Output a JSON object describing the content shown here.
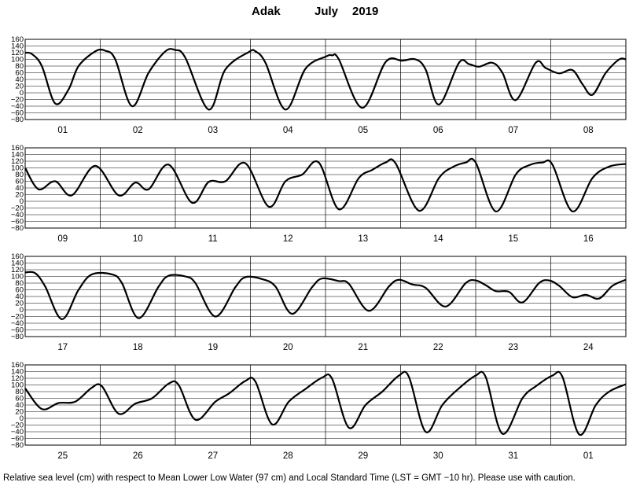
{
  "title": {
    "station": "Adak",
    "month": "July",
    "year": "2019"
  },
  "footnote": "Relative sea level (cm) with respect to Mean Lower Low Water (97 cm) and Local Standard Time (LST = GMT −10 hr). Please use with caution.",
  "chart_data": [
    {
      "type": "line",
      "ylim": [
        -80,
        160
      ],
      "yticks": [
        "160",
        "140",
        "120",
        "100",
        "80",
        "60",
        "40",
        "20",
        "0",
        "−20",
        "−40",
        "−60",
        "−80"
      ],
      "grid": true,
      "categories": [
        "01",
        "02",
        "03",
        "04",
        "05",
        "06",
        "07",
        "08"
      ],
      "series": [
        {
          "points": [
            [
              0,
              120
            ],
            [
              2,
              116
            ],
            [
              5,
              80
            ],
            [
              9,
              -32
            ],
            [
              13,
              10
            ],
            [
              16,
              80
            ],
            [
              21,
              124
            ],
            [
              24,
              126
            ],
            [
              27,
              100
            ],
            [
              32,
              -40
            ],
            [
              37,
              60
            ],
            [
              42,
              124
            ],
            [
              45,
              128
            ],
            [
              48,
              105
            ],
            [
              55,
              -50
            ],
            [
              60,
              70
            ],
            [
              67,
              122
            ],
            [
              69,
              124
            ],
            [
              72,
              90
            ],
            [
              78,
              -50
            ],
            [
              84,
              72
            ],
            [
              90,
              108
            ],
            [
              92,
              112
            ],
            [
              94,
              100
            ],
            [
              101,
              -45
            ],
            [
              108,
              92
            ],
            [
              113,
              96
            ],
            [
              117,
              100
            ],
            [
              120,
              70
            ],
            [
              124,
              -35
            ],
            [
              130,
              90
            ],
            [
              133,
              86
            ],
            [
              136,
              78
            ],
            [
              140,
              90
            ],
            [
              143,
              60
            ],
            [
              147,
              -22
            ],
            [
              153,
              90
            ],
            [
              156,
              74
            ],
            [
              160,
              58
            ],
            [
              164,
              68
            ],
            [
              167,
              26
            ],
            [
              170,
              -6
            ],
            [
              174,
              60
            ],
            [
              178,
              100
            ],
            [
              180,
              100
            ]
          ]
        }
      ]
    },
    {
      "type": "line",
      "ylim": [
        -80,
        160
      ],
      "yticks": [
        "160",
        "140",
        "120",
        "100",
        "80",
        "60",
        "40",
        "20",
        "0",
        "−20",
        "−40",
        "−60",
        "−80"
      ],
      "grid": true,
      "categories": [
        "09",
        "10",
        "11",
        "12",
        "13",
        "14",
        "15",
        "16"
      ],
      "series": [
        {
          "points": [
            [
              0,
              100
            ],
            [
              4,
              36
            ],
            [
              9,
              60
            ],
            [
              14,
              18
            ],
            [
              21,
              106
            ],
            [
              28,
              18
            ],
            [
              33,
              56
            ],
            [
              37,
              36
            ],
            [
              43,
              110
            ],
            [
              50,
              -4
            ],
            [
              55,
              58
            ],
            [
              60,
              60
            ],
            [
              66,
              114
            ],
            [
              73,
              -16
            ],
            [
              78,
              60
            ],
            [
              83,
              80
            ],
            [
              88,
              116
            ],
            [
              94,
              -24
            ],
            [
              100,
              70
            ],
            [
              104,
              94
            ],
            [
              108,
              116
            ],
            [
              111,
              114
            ],
            [
              118,
              -28
            ],
            [
              124,
              70
            ],
            [
              128,
              102
            ],
            [
              132,
              116
            ],
            [
              135,
              116
            ],
            [
              141,
              -30
            ],
            [
              147,
              80
            ],
            [
              151,
              108
            ],
            [
              155,
              116
            ],
            [
              158,
              110
            ],
            [
              164,
              -30
            ],
            [
              170,
              70
            ],
            [
              175,
              104
            ],
            [
              180,
              112
            ]
          ]
        }
      ]
    },
    {
      "type": "line",
      "ylim": [
        -80,
        160
      ],
      "yticks": [
        "160",
        "140",
        "120",
        "100",
        "80",
        "60",
        "40",
        "20",
        "0",
        "−20",
        "−40",
        "−60",
        "−80"
      ],
      "grid": true,
      "categories": [
        "17",
        "18",
        "19",
        "20",
        "21",
        "22",
        "23",
        "24"
      ],
      "series": [
        {
          "points": [
            [
              0,
              112
            ],
            [
              3,
              110
            ],
            [
              6,
              70
            ],
            [
              11,
              -28
            ],
            [
              16,
              60
            ],
            [
              20,
              106
            ],
            [
              26,
              106
            ],
            [
              29,
              80
            ],
            [
              34,
              -25
            ],
            [
              40,
              70
            ],
            [
              43,
              102
            ],
            [
              48,
              100
            ],
            [
              51,
              80
            ],
            [
              57,
              -20
            ],
            [
              63,
              68
            ],
            [
              66,
              98
            ],
            [
              71,
              92
            ],
            [
              75,
              70
            ],
            [
              80,
              -12
            ],
            [
              86,
              68
            ],
            [
              89,
              94
            ],
            [
              94,
              86
            ],
            [
              97,
              78
            ],
            [
              103,
              -3
            ],
            [
              109,
              70
            ],
            [
              112,
              90
            ],
            [
              116,
              76
            ],
            [
              120,
              66
            ],
            [
              126,
              10
            ],
            [
              132,
              80
            ],
            [
              135,
              88
            ],
            [
              138,
              74
            ],
            [
              141,
              56
            ],
            [
              145,
              54
            ],
            [
              149,
              22
            ],
            [
              154,
              80
            ],
            [
              157,
              88
            ],
            [
              160,
              72
            ],
            [
              164,
              38
            ],
            [
              168,
              45
            ],
            [
              172,
              34
            ],
            [
              176,
              72
            ],
            [
              180,
              90
            ]
          ]
        }
      ]
    },
    {
      "type": "line",
      "ylim": [
        -80,
        160
      ],
      "yticks": [
        "160",
        "140",
        "120",
        "100",
        "80",
        "60",
        "40",
        "20",
        "0",
        "−20",
        "−40",
        "−60",
        "−80"
      ],
      "grid": true,
      "categories": [
        "25",
        "26",
        "27",
        "28",
        "29",
        "30",
        "31",
        "01"
      ],
      "series": [
        {
          "points": [
            [
              0,
              90
            ],
            [
              5,
              28
            ],
            [
              10,
              46
            ],
            [
              15,
              50
            ],
            [
              20,
              92
            ],
            [
              23,
              96
            ],
            [
              28,
              14
            ],
            [
              33,
              44
            ],
            [
              38,
              60
            ],
            [
              43,
              104
            ],
            [
              46,
              100
            ],
            [
              51,
              -4
            ],
            [
              57,
              50
            ],
            [
              61,
              74
            ],
            [
              66,
              112
            ],
            [
              69,
              110
            ],
            [
              74,
              -18
            ],
            [
              79,
              50
            ],
            [
              84,
              88
            ],
            [
              89,
              122
            ],
            [
              92,
              118
            ],
            [
              97,
              -28
            ],
            [
              102,
              40
            ],
            [
              107,
              80
            ],
            [
              112,
              128
            ],
            [
              115,
              124
            ],
            [
              120,
              -40
            ],
            [
              125,
              40
            ],
            [
              130,
              90
            ],
            [
              135,
              128
            ],
            [
              138,
              124
            ],
            [
              143,
              -46
            ],
            [
              149,
              60
            ],
            [
              153,
              96
            ],
            [
              158,
              128
            ],
            [
              161,
              124
            ],
            [
              166,
              -48
            ],
            [
              171,
              40
            ],
            [
              175,
              80
            ],
            [
              180,
              102
            ]
          ]
        }
      ]
    }
  ]
}
